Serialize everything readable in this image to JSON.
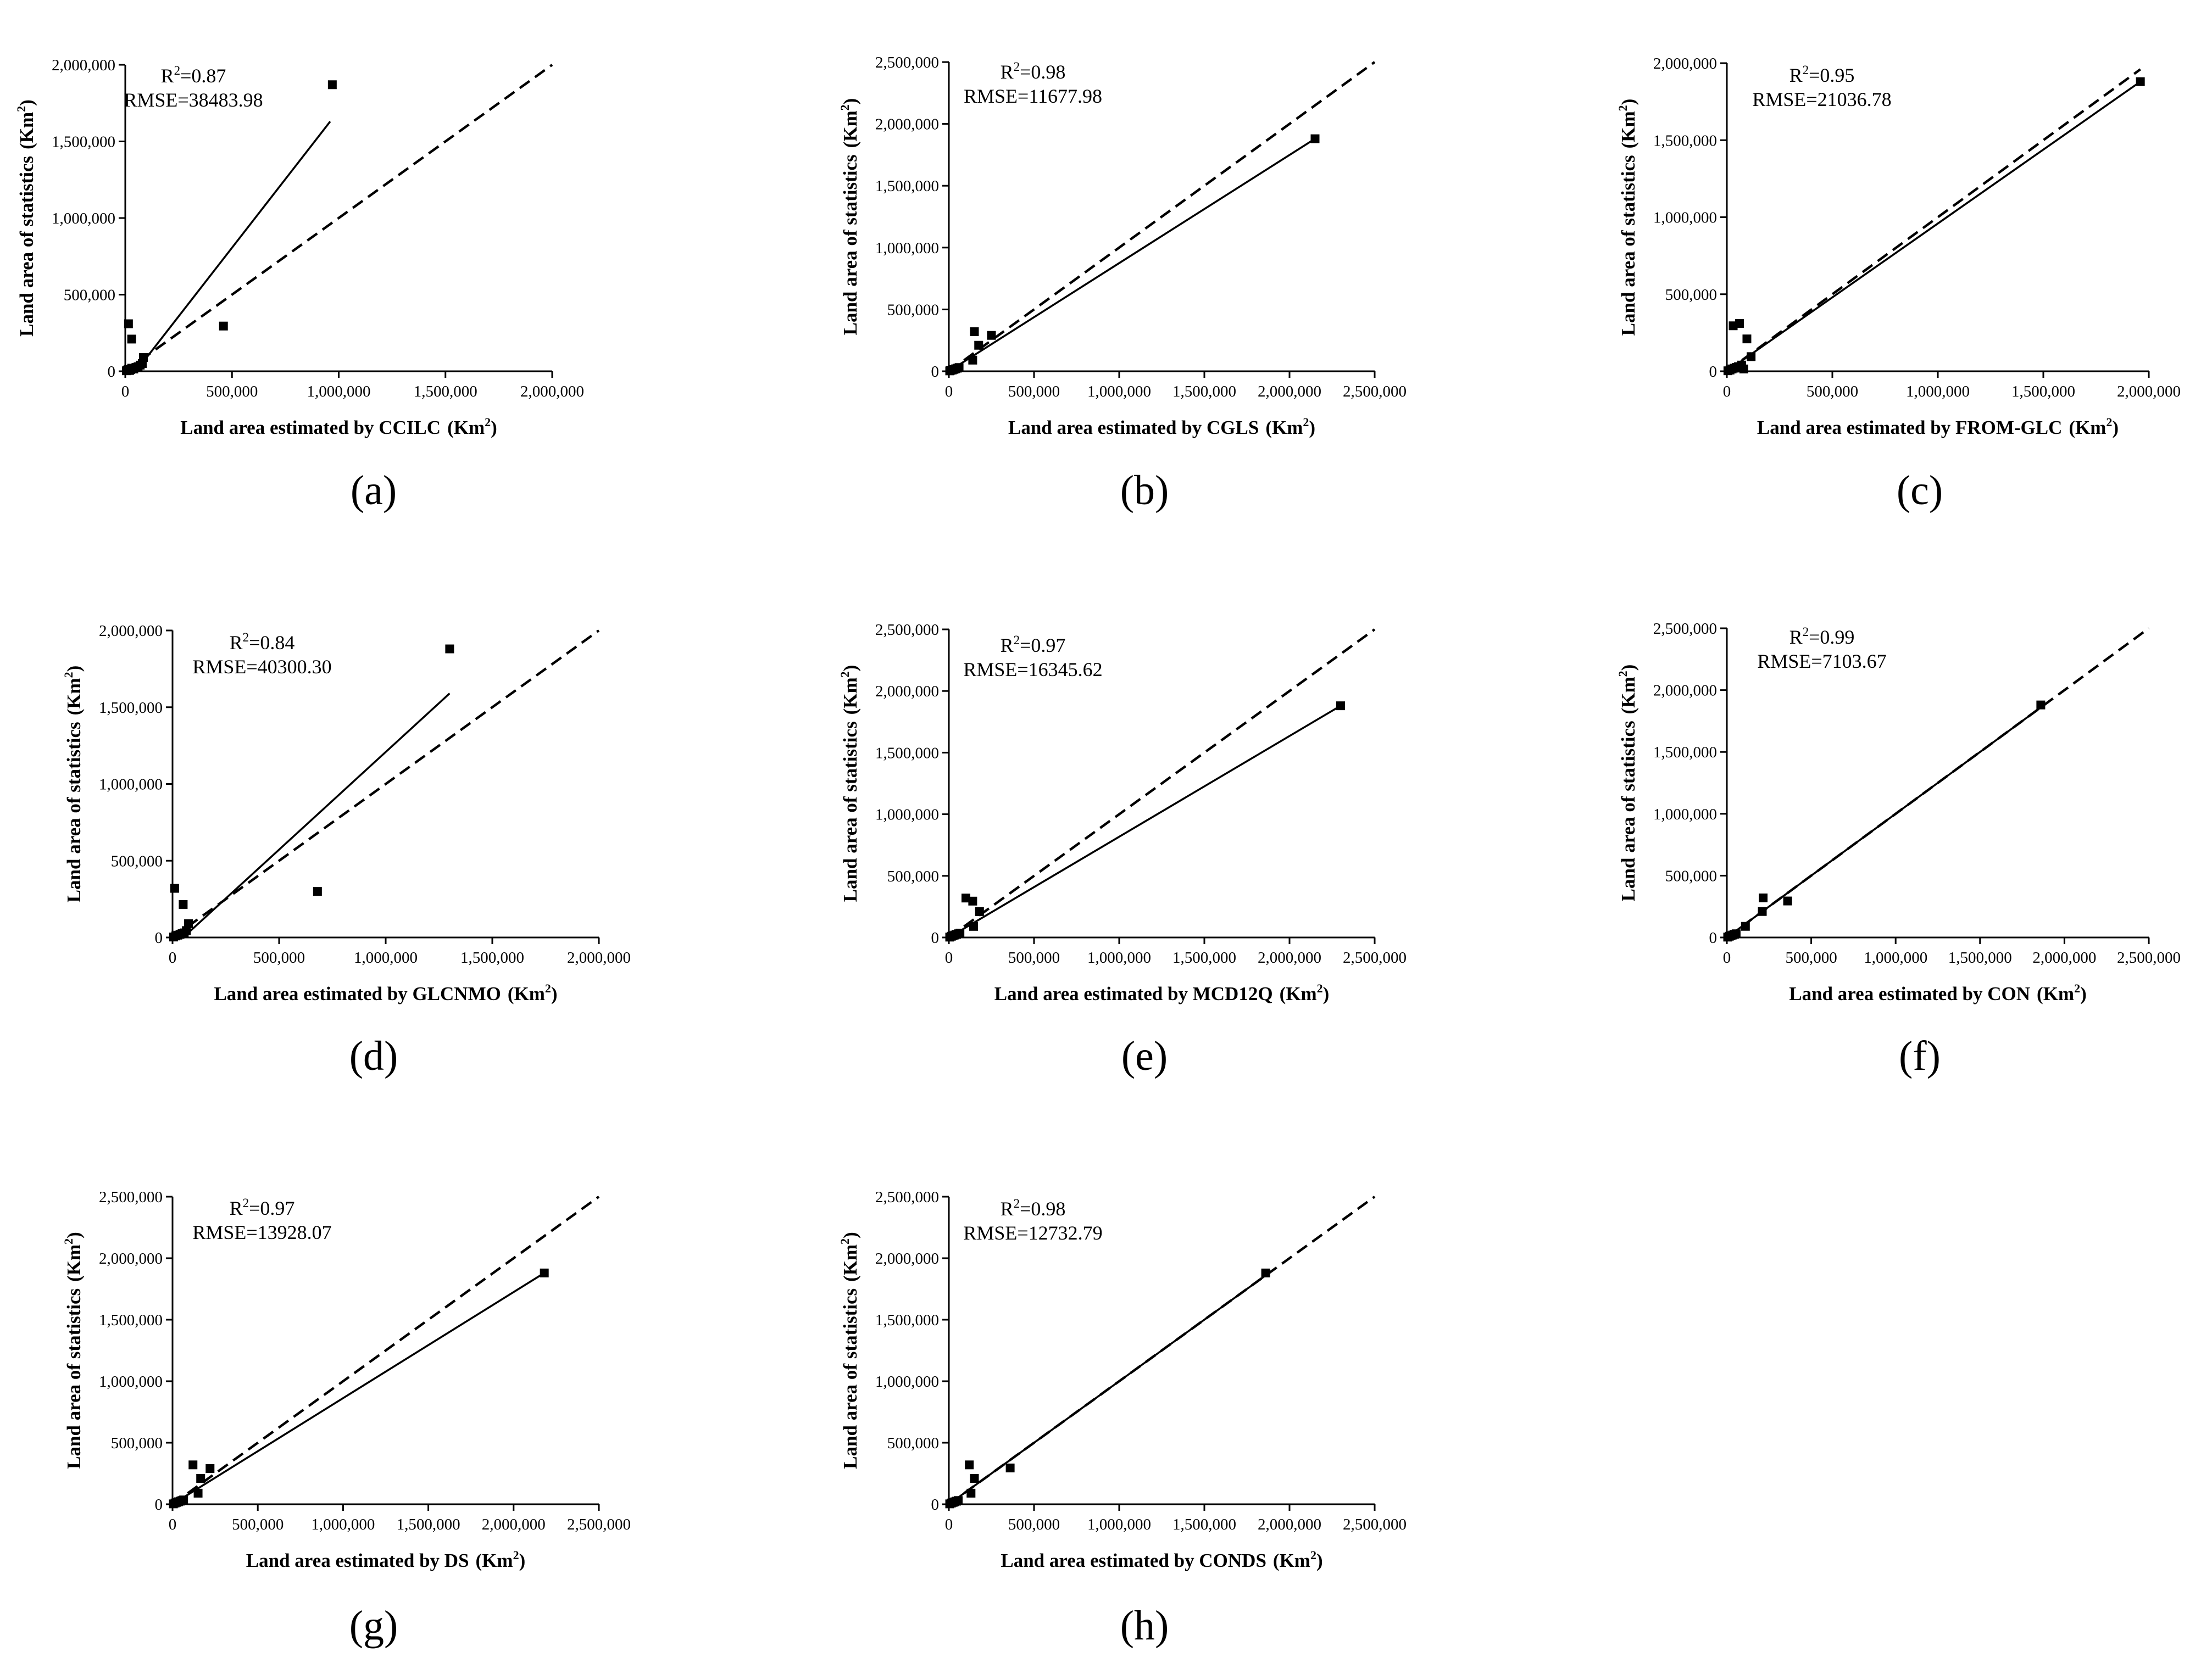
{
  "chart_data": [
    {
      "type": "scatter",
      "panel": "(a)",
      "xlabel": "Land area estimated by CCILC",
      "ylabel": "Land area of statistics",
      "unit": "(Km",
      "unit_sup": "2",
      "unit_close": ")",
      "r2_prefix": "R",
      "r2_sup": "2",
      "r2_value": "=0.87",
      "rmse_text": "RMSE=38483.98",
      "xlim": [
        0,
        2000000
      ],
      "ylim": [
        0,
        2000000
      ],
      "xticks": [
        "0",
        "500,000",
        "1,000,000",
        "1,500,000",
        "2,000,000"
      ],
      "yticks": [
        "0",
        "500,000",
        "1,000,000",
        "1,500,000",
        "2,000,000"
      ],
      "points": [
        [
          5000,
          3000
        ],
        [
          10000,
          8000
        ],
        [
          15000,
          12000
        ],
        [
          20000,
          5000
        ],
        [
          25000,
          10000
        ],
        [
          30000,
          20000
        ],
        [
          40000,
          15000
        ],
        [
          50000,
          25000
        ],
        [
          60000,
          30000
        ],
        [
          70000,
          40000
        ],
        [
          80000,
          50000
        ],
        [
          85000,
          90000
        ],
        [
          15000,
          310000
        ],
        [
          30000,
          210000
        ],
        [
          460000,
          295000
        ],
        [
          970000,
          1870000
        ]
      ],
      "fit_line": [
        [
          50000,
          0
        ],
        [
          960000,
          1630000
        ]
      ],
      "identity_line": [
        [
          0,
          0
        ],
        [
          2000000,
          2000000
        ]
      ]
    },
    {
      "type": "scatter",
      "panel": "(b)",
      "xlabel": "Land area estimated by CGLS",
      "ylabel": "Land area of statistics",
      "unit": "(Km",
      "unit_sup": "2",
      "unit_close": ")",
      "r2_prefix": "R",
      "r2_sup": "2",
      "r2_value": "=0.98",
      "rmse_text": "RMSE=11677.98",
      "xlim": [
        0,
        2500000
      ],
      "ylim": [
        0,
        2500000
      ],
      "xticks": [
        "0",
        "500,000",
        "1,000,000",
        "1,500,000",
        "2,000,000",
        "2,500,000"
      ],
      "yticks": [
        "0",
        "500,000",
        "1,000,000",
        "1,500,000",
        "2,000,000",
        "2,500,000"
      ],
      "points": [
        [
          5000,
          3000
        ],
        [
          10000,
          8000
        ],
        [
          20000,
          10000
        ],
        [
          30000,
          15000
        ],
        [
          40000,
          20000
        ],
        [
          50000,
          25000
        ],
        [
          60000,
          30000
        ],
        [
          140000,
          90000
        ],
        [
          150000,
          320000
        ],
        [
          175000,
          210000
        ],
        [
          250000,
          290000
        ],
        [
          2150000,
          1880000
        ]
      ],
      "fit_line": [
        [
          0,
          0
        ],
        [
          2150000,
          1880000
        ]
      ],
      "identity_line": [
        [
          0,
          0
        ],
        [
          2500000,
          2500000
        ]
      ]
    },
    {
      "type": "scatter",
      "panel": "(c)",
      "xlabel": "Land area estimated by FROM-GLC",
      "ylabel": "Land area of statistics",
      "unit": "(Km",
      "unit_sup": "2",
      "unit_close": ")",
      "r2_prefix": "R",
      "r2_sup": "2",
      "r2_value": "=0.95",
      "rmse_text": "RMSE=21036.78",
      "xlim": [
        0,
        2000000
      ],
      "ylim": [
        0,
        2000000
      ],
      "xticks": [
        "0",
        "500,000",
        "1,000,000",
        "1,500,000",
        "2,000,000"
      ],
      "yticks": [
        "0",
        "500,000",
        "1,000,000",
        "1,500,000",
        "2,000,000"
      ],
      "points": [
        [
          5000,
          3000
        ],
        [
          15000,
          8000
        ],
        [
          25000,
          15000
        ],
        [
          35000,
          20000
        ],
        [
          45000,
          25000
        ],
        [
          55000,
          30000
        ],
        [
          70000,
          40000
        ],
        [
          80000,
          15000
        ],
        [
          30000,
          295000
        ],
        [
          60000,
          310000
        ],
        [
          95000,
          210000
        ],
        [
          115000,
          95000
        ],
        [
          1960000,
          1880000
        ]
      ],
      "fit_line": [
        [
          0,
          0
        ],
        [
          1960000,
          1880000
        ]
      ],
      "identity_line": [
        [
          0,
          0
        ],
        [
          1960000,
          1960000
        ]
      ]
    },
    {
      "type": "scatter",
      "panel": "(d)",
      "xlabel": "Land area estimated by GLCNMO",
      "ylabel": "Land area of statistics",
      "unit": "(Km",
      "unit_sup": "2",
      "unit_close": ")",
      "r2_prefix": "R",
      "r2_sup": "2",
      "r2_value": "=0.84",
      "rmse_text": "RMSE=40300.30",
      "xlim": [
        0,
        2000000
      ],
      "ylim": [
        0,
        2000000
      ],
      "xticks": [
        "0",
        "500,000",
        "1,000,000",
        "1,500,000",
        "2,000,000"
      ],
      "yticks": [
        "0",
        "500,000",
        "1,000,000",
        "1,500,000",
        "2,000,000"
      ],
      "points": [
        [
          5000,
          3000
        ],
        [
          15000,
          10000
        ],
        [
          25000,
          15000
        ],
        [
          35000,
          20000
        ],
        [
          45000,
          25000
        ],
        [
          55000,
          30000
        ],
        [
          65000,
          45000
        ],
        [
          75000,
          90000
        ],
        [
          10000,
          320000
        ],
        [
          50000,
          215000
        ],
        [
          680000,
          300000
        ],
        [
          1300000,
          1880000
        ]
      ],
      "fit_line": [
        [
          50000,
          0
        ],
        [
          1300000,
          1590000
        ]
      ],
      "identity_line": [
        [
          0,
          0
        ],
        [
          2000000,
          2000000
        ]
      ]
    },
    {
      "type": "scatter",
      "panel": "(e)",
      "xlabel": "Land area estimated by MCD12Q",
      "ylabel": "Land area of statistics",
      "unit": "(Km",
      "unit_sup": "2",
      "unit_close": ")",
      "r2_prefix": "R",
      "r2_sup": "2",
      "r2_value": "=0.97",
      "rmse_text": "RMSE=16345.62",
      "xlim": [
        0,
        2500000
      ],
      "ylim": [
        0,
        2500000
      ],
      "xticks": [
        "0",
        "500,000",
        "1,000,000",
        "1,500,000",
        "2,000,000",
        "2,500,000"
      ],
      "yticks": [
        "0",
        "500,000",
        "1,000,000",
        "1,500,000",
        "2,000,000",
        "2,500,000"
      ],
      "points": [
        [
          5000,
          3000
        ],
        [
          15000,
          10000
        ],
        [
          25000,
          15000
        ],
        [
          35000,
          20000
        ],
        [
          45000,
          25000
        ],
        [
          55000,
          30000
        ],
        [
          65000,
          35000
        ],
        [
          100000,
          320000
        ],
        [
          140000,
          295000
        ],
        [
          145000,
          90000
        ],
        [
          180000,
          210000
        ],
        [
          2300000,
          1880000
        ]
      ],
      "fit_line": [
        [
          0,
          0
        ],
        [
          2300000,
          1880000
        ]
      ],
      "identity_line": [
        [
          0,
          0
        ],
        [
          2500000,
          2500000
        ]
      ]
    },
    {
      "type": "scatter",
      "panel": "(f)",
      "xlabel": "Land area estimated by CON",
      "ylabel": "Land area of statistics",
      "unit": "(Km",
      "unit_sup": "2",
      "unit_close": ")",
      "r2_prefix": "R",
      "r2_sup": "2",
      "r2_value": "=0.99",
      "rmse_text": "RMSE=7103.67",
      "xlim": [
        0,
        2500000
      ],
      "ylim": [
        0,
        2500000
      ],
      "xticks": [
        "0",
        "500,000",
        "1,000,000",
        "1,500,000",
        "2,000,000",
        "2,500,000"
      ],
      "yticks": [
        "0",
        "500,000",
        "1,000,000",
        "1,500,000",
        "2,000,000",
        "2,500,000"
      ],
      "points": [
        [
          5000,
          3000
        ],
        [
          15000,
          10000
        ],
        [
          25000,
          15000
        ],
        [
          35000,
          20000
        ],
        [
          45000,
          25000
        ],
        [
          55000,
          30000
        ],
        [
          110000,
          90000
        ],
        [
          210000,
          210000
        ],
        [
          215000,
          320000
        ],
        [
          360000,
          295000
        ],
        [
          1860000,
          1880000
        ]
      ],
      "fit_line": [
        [
          0,
          0
        ],
        [
          1860000,
          1860000
        ]
      ],
      "identity_line": [
        [
          0,
          0
        ],
        [
          2500000,
          2500000
        ]
      ]
    },
    {
      "type": "scatter",
      "panel": "(g)",
      "xlabel": "Land area estimated by DS",
      "ylabel": "Land area of statistics",
      "unit": "(Km",
      "unit_sup": "2",
      "unit_close": ")",
      "r2_prefix": "R",
      "r2_sup": "2",
      "r2_value": "=0.97",
      "rmse_text": "RMSE=13928.07",
      "xlim": [
        0,
        2500000
      ],
      "ylim": [
        0,
        2500000
      ],
      "xticks": [
        "0",
        "500,000",
        "1,000,000",
        "1,500,000",
        "2,000,000",
        "2,500,000"
      ],
      "yticks": [
        "0",
        "500,000",
        "1,000,000",
        "1,500,000",
        "2,000,000",
        "2,500,000"
      ],
      "points": [
        [
          5000,
          3000
        ],
        [
          15000,
          10000
        ],
        [
          25000,
          15000
        ],
        [
          35000,
          20000
        ],
        [
          45000,
          25000
        ],
        [
          55000,
          30000
        ],
        [
          65000,
          35000
        ],
        [
          120000,
          320000
        ],
        [
          150000,
          90000
        ],
        [
          165000,
          210000
        ],
        [
          220000,
          290000
        ],
        [
          2180000,
          1880000
        ]
      ],
      "fit_line": [
        [
          0,
          0
        ],
        [
          2180000,
          1880000
        ]
      ],
      "identity_line": [
        [
          0,
          0
        ],
        [
          2500000,
          2500000
        ]
      ]
    },
    {
      "type": "scatter",
      "panel": "(h)",
      "xlabel": "Land area estimated by CONDS",
      "ylabel": "Land area of statistics",
      "unit": "(Km",
      "unit_sup": "2",
      "unit_close": ")",
      "r2_prefix": "R",
      "r2_sup": "2",
      "r2_value": "=0.98",
      "rmse_text": "RMSE=12732.79",
      "xlim": [
        0,
        2500000
      ],
      "ylim": [
        0,
        2500000
      ],
      "xticks": [
        "0",
        "500,000",
        "1,000,000",
        "1,500,000",
        "2,000,000",
        "2,500,000"
      ],
      "yticks": [
        "0",
        "500,000",
        "1,000,000",
        "1,500,000",
        "2,000,000",
        "2,500,000"
      ],
      "points": [
        [
          5000,
          3000
        ],
        [
          15000,
          10000
        ],
        [
          25000,
          15000
        ],
        [
          35000,
          20000
        ],
        [
          45000,
          25000
        ],
        [
          55000,
          30000
        ],
        [
          120000,
          320000
        ],
        [
          130000,
          90000
        ],
        [
          150000,
          210000
        ],
        [
          360000,
          295000
        ],
        [
          1860000,
          1880000
        ]
      ],
      "fit_line": [
        [
          0,
          0
        ],
        [
          1860000,
          1860000
        ]
      ],
      "identity_line": [
        [
          0,
          0
        ],
        [
          2500000,
          2500000
        ]
      ]
    }
  ]
}
